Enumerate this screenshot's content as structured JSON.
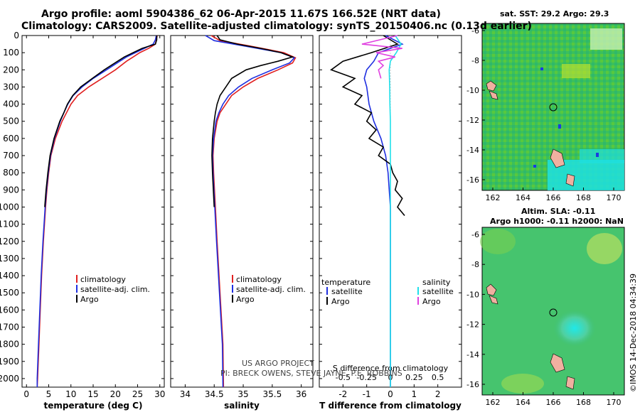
{
  "header": {
    "line1": "Argo profile: aoml 5904386_62 06-Apr-2015 11.67S 166.52E (NRT data)",
    "line2": "Climatology: CARS2009. Satellite-adjusted climatology: synTS_20150406.nc (0.13d earlier)"
  },
  "colors": {
    "climatology": "#e02020",
    "satellite": "#1f2fe0",
    "argo": "#000000",
    "sal_satellite": "#20e0ea",
    "sal_argo": "#e040e0"
  },
  "depth_axis": {
    "ticks": [
      0,
      100,
      200,
      300,
      400,
      500,
      600,
      700,
      800,
      900,
      1000,
      1100,
      1200,
      1300,
      1400,
      1500,
      1600,
      1700,
      1800,
      1900,
      2000
    ],
    "ylim": [
      2050,
      0
    ]
  },
  "credits": {
    "line1": "US ARGO PROJECT",
    "line2": "PI: BRECK OWENS, STEVE JAYNE, P.E. ROBBINS"
  },
  "maps": {
    "top": {
      "title": "sat. SST: 29.2 Argo: 29.3",
      "yticks": [
        "-6",
        "-8",
        "-10",
        "-12",
        "-14",
        "-16"
      ],
      "xticks": [
        "162",
        "164",
        "166",
        "168",
        "170"
      ]
    },
    "bottom": {
      "title1": "Altim. SLA: -0.11",
      "title2": "Argo h1000: -0.11 h2000: NaN",
      "yticks": [
        "-6",
        "-8",
        "-10",
        "-12",
        "-14",
        "-16"
      ],
      "xticks": [
        "162",
        "164",
        "166",
        "168",
        "170"
      ]
    }
  },
  "watermark": "©IMOS 14-Dec-2018 04:34:39",
  "chart_data": [
    {
      "type": "line",
      "name": "temperature-panel",
      "xlabel": "temperature (deg C)",
      "ylabel": "depth",
      "xlim": [
        -1,
        31
      ],
      "xticks": [
        0,
        5,
        10,
        15,
        20,
        25,
        30
      ],
      "ylim": [
        2050,
        0
      ],
      "legend": [
        "climatology",
        "satellite-adj. clim.",
        "Argo"
      ],
      "series": [
        {
          "name": "climatology",
          "depth": [
            0,
            25,
            50,
            75,
            100,
            125,
            150,
            200,
            250,
            300,
            350,
            400,
            450,
            500,
            600,
            700,
            800,
            900,
            1000,
            1200,
            1400,
            1600,
            1800,
            2000,
            2050
          ],
          "values": [
            29.4,
            29.2,
            29.0,
            27.5,
            25.5,
            24.0,
            22.5,
            20.0,
            17.0,
            14.0,
            11.5,
            10.0,
            9.0,
            8.0,
            6.5,
            5.5,
            5.0,
            4.6,
            4.3,
            3.8,
            3.4,
            3.1,
            2.8,
            2.5,
            2.4
          ]
        },
        {
          "name": "satellite-adj. clim.",
          "depth": [
            0,
            25,
            50,
            75,
            100,
            125,
            150,
            200,
            250,
            300,
            350,
            400,
            450,
            500,
            600,
            700,
            800,
            900,
            1000,
            1200,
            1400,
            1600,
            1800,
            2000,
            2050
          ],
          "values": [
            29.2,
            29.0,
            28.5,
            26.5,
            24.5,
            22.5,
            21.0,
            18.0,
            15.0,
            12.5,
            10.5,
            9.3,
            8.4,
            7.6,
            6.3,
            5.4,
            4.9,
            4.5,
            4.2,
            3.7,
            3.3,
            3.0,
            2.7,
            2.4,
            2.4
          ]
        },
        {
          "name": "Argo",
          "depth": [
            0,
            25,
            50,
            75,
            100,
            125,
            150,
            200,
            250,
            300,
            350,
            400,
            450,
            500,
            600,
            700,
            800,
            900,
            1000
          ],
          "values": [
            29.3,
            29.3,
            29.0,
            26.0,
            24.0,
            22.0,
            20.5,
            17.5,
            14.8,
            12.2,
            10.4,
            9.2,
            8.4,
            7.5,
            6.2,
            5.3,
            4.8,
            4.4,
            4.1
          ]
        }
      ]
    },
    {
      "type": "line",
      "name": "salinity-panel",
      "xlabel": "salinity",
      "ylabel": "depth",
      "xlim": [
        33.75,
        36.2
      ],
      "xticks": [
        34,
        34.5,
        35,
        35.5,
        36
      ],
      "ylim": [
        2050,
        0
      ],
      "legend": [
        "climatology",
        "satellite-adj. clim.",
        "Argo"
      ],
      "series": [
        {
          "name": "climatology",
          "depth": [
            0,
            30,
            60,
            100,
            130,
            160,
            200,
            250,
            300,
            350,
            400,
            450,
            500,
            600,
            700,
            800,
            1000,
            1200,
            1500,
            1800,
            2050
          ],
          "values": [
            34.45,
            34.6,
            35.1,
            35.7,
            35.9,
            35.85,
            35.6,
            35.25,
            35.0,
            34.8,
            34.7,
            34.6,
            34.55,
            34.5,
            34.48,
            34.49,
            34.52,
            34.55,
            34.6,
            34.65,
            34.66
          ]
        },
        {
          "name": "satellite-adj. clim.",
          "depth": [
            0,
            30,
            60,
            100,
            130,
            160,
            200,
            250,
            300,
            350,
            400,
            450,
            500,
            600,
            700,
            800,
            1000,
            1200,
            1500,
            1800,
            2050
          ],
          "values": [
            34.35,
            34.5,
            35.0,
            35.65,
            35.88,
            35.8,
            35.5,
            35.15,
            34.92,
            34.75,
            34.65,
            34.58,
            34.53,
            34.49,
            34.47,
            34.48,
            34.51,
            34.54,
            34.59,
            34.64,
            34.65
          ]
        },
        {
          "name": "Argo",
          "depth": [
            0,
            25,
            50,
            75,
            100,
            125,
            150,
            175,
            200,
            250,
            300,
            350,
            400,
            450,
            500,
            600,
            700,
            800,
            1000
          ],
          "values": [
            34.55,
            34.6,
            34.9,
            35.3,
            35.65,
            35.85,
            35.6,
            35.3,
            35.05,
            34.8,
            34.7,
            34.6,
            34.55,
            34.52,
            34.5,
            34.47,
            34.46,
            34.47,
            34.5
          ]
        }
      ]
    },
    {
      "type": "line",
      "name": "difference-panel",
      "xlabel": "T difference from climatology",
      "xlabel2": "S difference from climatology",
      "legend_title_t": "temperature",
      "legend_title_s": "salinity",
      "xlim": [
        -3,
        3
      ],
      "xticks": [
        -2,
        -1,
        0,
        1,
        2
      ],
      "xticks_s_labels": [
        "-0.5",
        "-0.25",
        "0",
        "0.25",
        "0.5"
      ],
      "ylim": [
        2050,
        0
      ],
      "legend": [
        "satellite",
        "Argo",
        "satellite",
        "Argo"
      ],
      "series": [
        {
          "name": "T satellite",
          "depth": [
            0,
            50,
            100,
            150,
            200,
            250,
            300,
            400,
            500,
            600,
            700,
            800,
            1000,
            1200,
            1500,
            2050
          ],
          "values": [
            -0.2,
            0.5,
            -0.5,
            -0.7,
            -1.0,
            -1.1,
            -1.0,
            -0.9,
            -0.7,
            -0.4,
            -0.2,
            -0.1,
            0,
            0,
            0,
            0
          ]
        },
        {
          "name": "T Argo",
          "depth": [
            0,
            50,
            100,
            150,
            200,
            250,
            300,
            350,
            400,
            450,
            500,
            550,
            600,
            650,
            700,
            750,
            800,
            850,
            900,
            950,
            1000,
            1050
          ],
          "values": [
            -0.3,
            0.3,
            -0.8,
            -2.0,
            -2.5,
            -1.5,
            -2.0,
            -1.2,
            -1.5,
            -0.8,
            -1.0,
            -0.6,
            -0.9,
            -0.3,
            -0.5,
            0,
            0.1,
            0.3,
            0.2,
            0.5,
            0.3,
            0.6
          ]
        },
        {
          "name": "S satellite",
          "depth": [
            0,
            50,
            100,
            150,
            200,
            300,
            400,
            500,
            700,
            1000,
            1500,
            2050
          ],
          "values": [
            0.2,
            0.45,
            0.25,
            0,
            -0.05,
            -0.03,
            -0.02,
            0,
            0,
            0,
            0,
            0
          ]
        },
        {
          "name": "S Argo",
          "depth": [
            0,
            50,
            75,
            100,
            125,
            150,
            175,
            200,
            250
          ],
          "values": [
            0.3,
            -1.2,
            0.5,
            -0.6,
            0.2,
            -0.5,
            -0.3,
            -0.5,
            -0.4
          ]
        }
      ]
    }
  ]
}
